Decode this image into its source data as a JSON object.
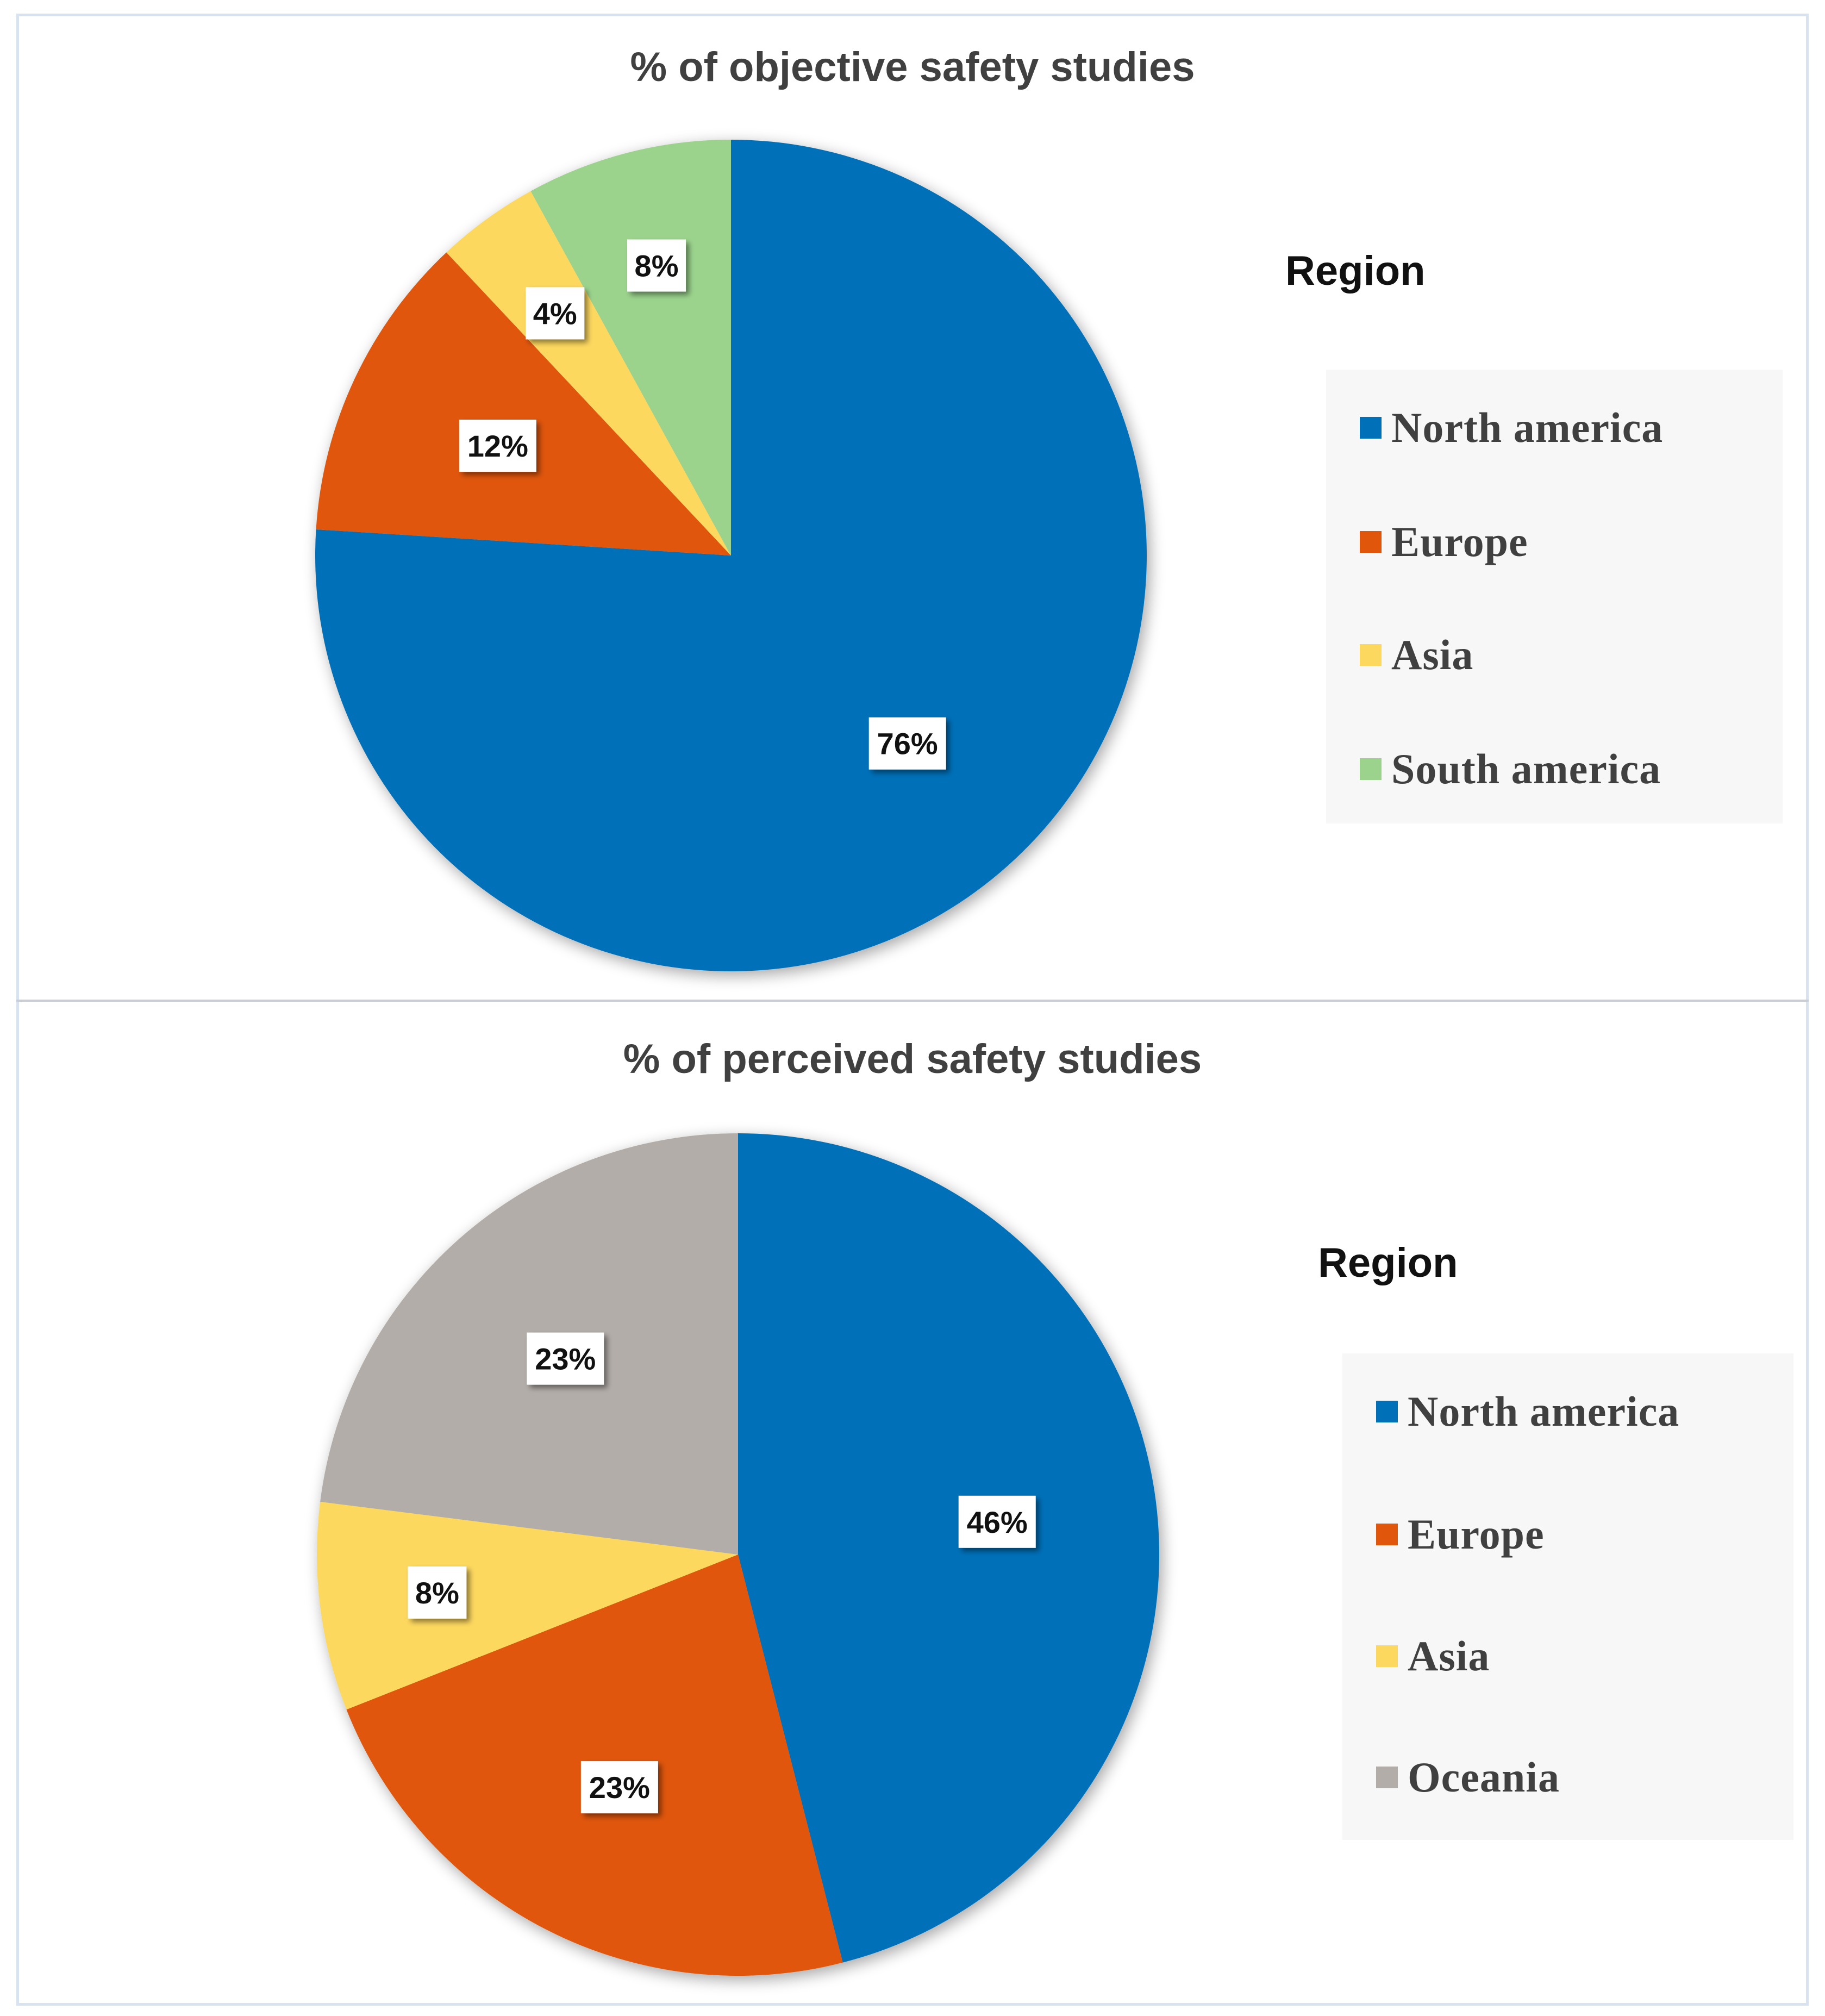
{
  "chart_data": [
    {
      "type": "pie",
      "title": "% of objective safety studies",
      "legend_title": "Region",
      "legend_position": "right",
      "labels": [
        "North america",
        "Europe",
        "Asia",
        "South america"
      ],
      "values": [
        76,
        12,
        4,
        8
      ],
      "data_labels": [
        "76%",
        "12%",
        "4%",
        "8%"
      ],
      "colors": [
        "#0070b8",
        "#e0570b",
        "#fdd85f",
        "#9bd38d"
      ]
    },
    {
      "type": "pie",
      "title": "% of perceived safety studies",
      "legend_title": "Region",
      "legend_position": "right",
      "labels": [
        "North america",
        "Europe",
        "Asia",
        "Oceania"
      ],
      "values": [
        46,
        23,
        8,
        23
      ],
      "data_labels": [
        "46%",
        "23%",
        "8%",
        "23%"
      ],
      "colors": [
        "#0070b8",
        "#e0570b",
        "#fdd85f",
        "#b3ada9"
      ]
    }
  ]
}
